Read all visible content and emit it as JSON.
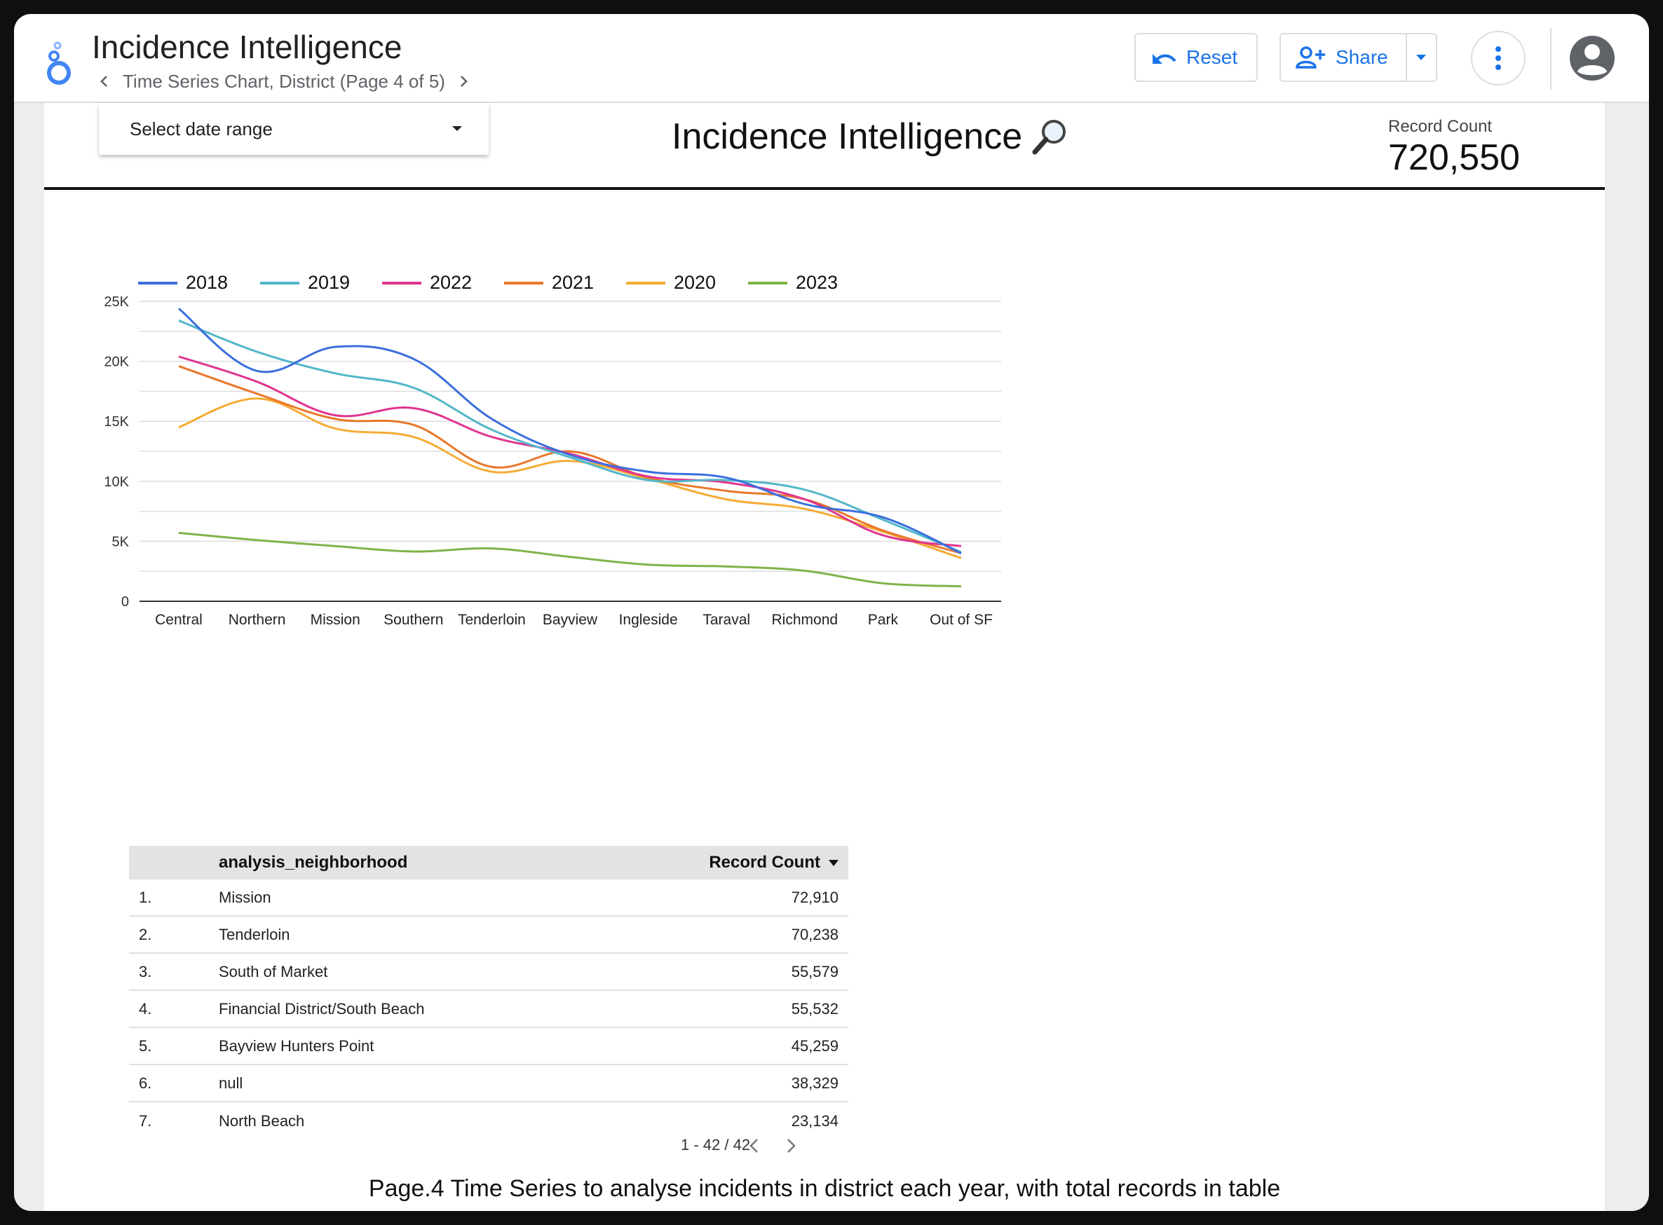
{
  "header": {
    "app_title": "Incidence Intelligence",
    "breadcrumb": "Time Series Chart, District (Page 4 of 5)",
    "reset_label": "Reset",
    "share_label": "Share"
  },
  "report": {
    "date_range_placeholder": "Select date range",
    "title": "Incidence Intelligence",
    "scorecard": {
      "label": "Record Count",
      "value": "720,550"
    },
    "caption": "Page.4 Time Series to analyse incidents in district each year, with total records in table"
  },
  "chart_data": {
    "type": "line",
    "categories": [
      "Central",
      "Northern",
      "Mission",
      "Southern",
      "Tenderloin",
      "Bayview",
      "Ingleside",
      "Taraval",
      "Richmond",
      "Park",
      "Out of SF"
    ],
    "y_ticks": [
      "0",
      "5K",
      "10K",
      "15K",
      "20K",
      "25K"
    ],
    "ylim": [
      0,
      25000
    ],
    "grid": true,
    "legend_position": "top-left",
    "series": [
      {
        "name": "2018",
        "color": "#3b6fde",
        "values": [
          24400,
          19200,
          21200,
          20200,
          15200,
          12200,
          10800,
          10300,
          8100,
          7000,
          4000
        ]
      },
      {
        "name": "2019",
        "color": "#52b6c9",
        "values": [
          23400,
          20800,
          19000,
          17800,
          14300,
          12000,
          10100,
          10100,
          9300,
          6800,
          4100
        ]
      },
      {
        "name": "2022",
        "color": "#e0358f",
        "values": [
          20400,
          18300,
          15500,
          16100,
          13700,
          12300,
          10400,
          9900,
          8500,
          5500,
          4600
        ]
      },
      {
        "name": "2021",
        "color": "#e8782a",
        "values": [
          19600,
          17300,
          15200,
          14700,
          11200,
          12500,
          10300,
          9200,
          8500,
          5900,
          4000
        ]
      },
      {
        "name": "2020",
        "color": "#f5ab35",
        "values": [
          14500,
          16900,
          14400,
          13700,
          10800,
          11700,
          10200,
          8500,
          7700,
          5800,
          3600
        ]
      },
      {
        "name": "2023",
        "color": "#7fb34a",
        "values": [
          5700,
          5100,
          4600,
          4150,
          4400,
          3700,
          3050,
          2900,
          2550,
          1500,
          1250
        ]
      }
    ]
  },
  "table": {
    "columns": [
      "analysis_neighborhood",
      "Record Count"
    ],
    "rows": [
      {
        "idx": "1.",
        "name": "Mission",
        "count": "72,910"
      },
      {
        "idx": "2.",
        "name": "Tenderloin",
        "count": "70,238"
      },
      {
        "idx": "3.",
        "name": "South of Market",
        "count": "55,579"
      },
      {
        "idx": "4.",
        "name": "Financial District/South Beach",
        "count": "55,532"
      },
      {
        "idx": "5.",
        "name": "Bayview Hunters Point",
        "count": "45,259"
      },
      {
        "idx": "6.",
        "name": "null",
        "count": "38,329"
      },
      {
        "idx": "7.",
        "name": "North Beach",
        "count": "23,134"
      }
    ],
    "pagination": "1 - 42 / 42"
  },
  "icons": {
    "logo": "looker-studio-logo-icon",
    "reset": "undo-icon",
    "share": "person-add-icon",
    "more": "more-vert-icon",
    "avatar": "account-circle-icon",
    "title": "magnifier-icon"
  },
  "colors": {
    "accent": "#1a73e8"
  }
}
